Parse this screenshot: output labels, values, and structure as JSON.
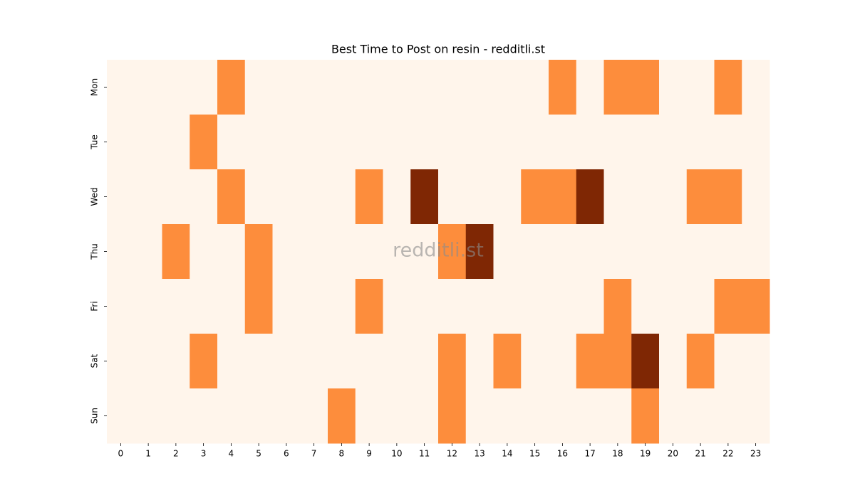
{
  "chart_data": {
    "type": "heatmap",
    "title": "Best Time to Post on resin - redditli.st",
    "watermark": "redditli.st",
    "x": [
      0,
      1,
      2,
      3,
      4,
      5,
      6,
      7,
      8,
      9,
      10,
      11,
      12,
      13,
      14,
      15,
      16,
      17,
      18,
      19,
      20,
      21,
      22,
      23
    ],
    "y": [
      "Mon",
      "Tue",
      "Wed",
      "Thu",
      "Fri",
      "Sat",
      "Sun"
    ],
    "values": [
      [
        0,
        0,
        0,
        0,
        1,
        0,
        0,
        0,
        0,
        0,
        0,
        0,
        0,
        0,
        0,
        0,
        1,
        0,
        1,
        1,
        0,
        0,
        1,
        0
      ],
      [
        0,
        0,
        0,
        1,
        0,
        0,
        0,
        0,
        0,
        0,
        0,
        0,
        0,
        0,
        0,
        0,
        0,
        0,
        0,
        0,
        0,
        0,
        0,
        0
      ],
      [
        0,
        0,
        0,
        0,
        1,
        0,
        0,
        0,
        0,
        1,
        0,
        2,
        0,
        0,
        0,
        1,
        1,
        2,
        0,
        0,
        0,
        1,
        1,
        0
      ],
      [
        0,
        0,
        1,
        0,
        0,
        1,
        0,
        0,
        0,
        0,
        0,
        0,
        1,
        2,
        0,
        0,
        0,
        0,
        0,
        0,
        0,
        0,
        0,
        0
      ],
      [
        0,
        0,
        0,
        0,
        0,
        1,
        0,
        0,
        0,
        1,
        0,
        0,
        0,
        0,
        0,
        0,
        0,
        0,
        1,
        0,
        0,
        0,
        1,
        1
      ],
      [
        0,
        0,
        0,
        1,
        0,
        0,
        0,
        0,
        0,
        0,
        0,
        0,
        1,
        0,
        1,
        0,
        0,
        1,
        1,
        2,
        0,
        1,
        0,
        0
      ],
      [
        0,
        0,
        0,
        0,
        0,
        0,
        0,
        0,
        1,
        0,
        0,
        0,
        1,
        0,
        0,
        0,
        0,
        0,
        0,
        1,
        0,
        0,
        0,
        0
      ]
    ],
    "zlim": [
      0,
      2
    ],
    "colormap": [
      "#fff5eb",
      "#fd8d3c",
      "#7f2704"
    ]
  }
}
